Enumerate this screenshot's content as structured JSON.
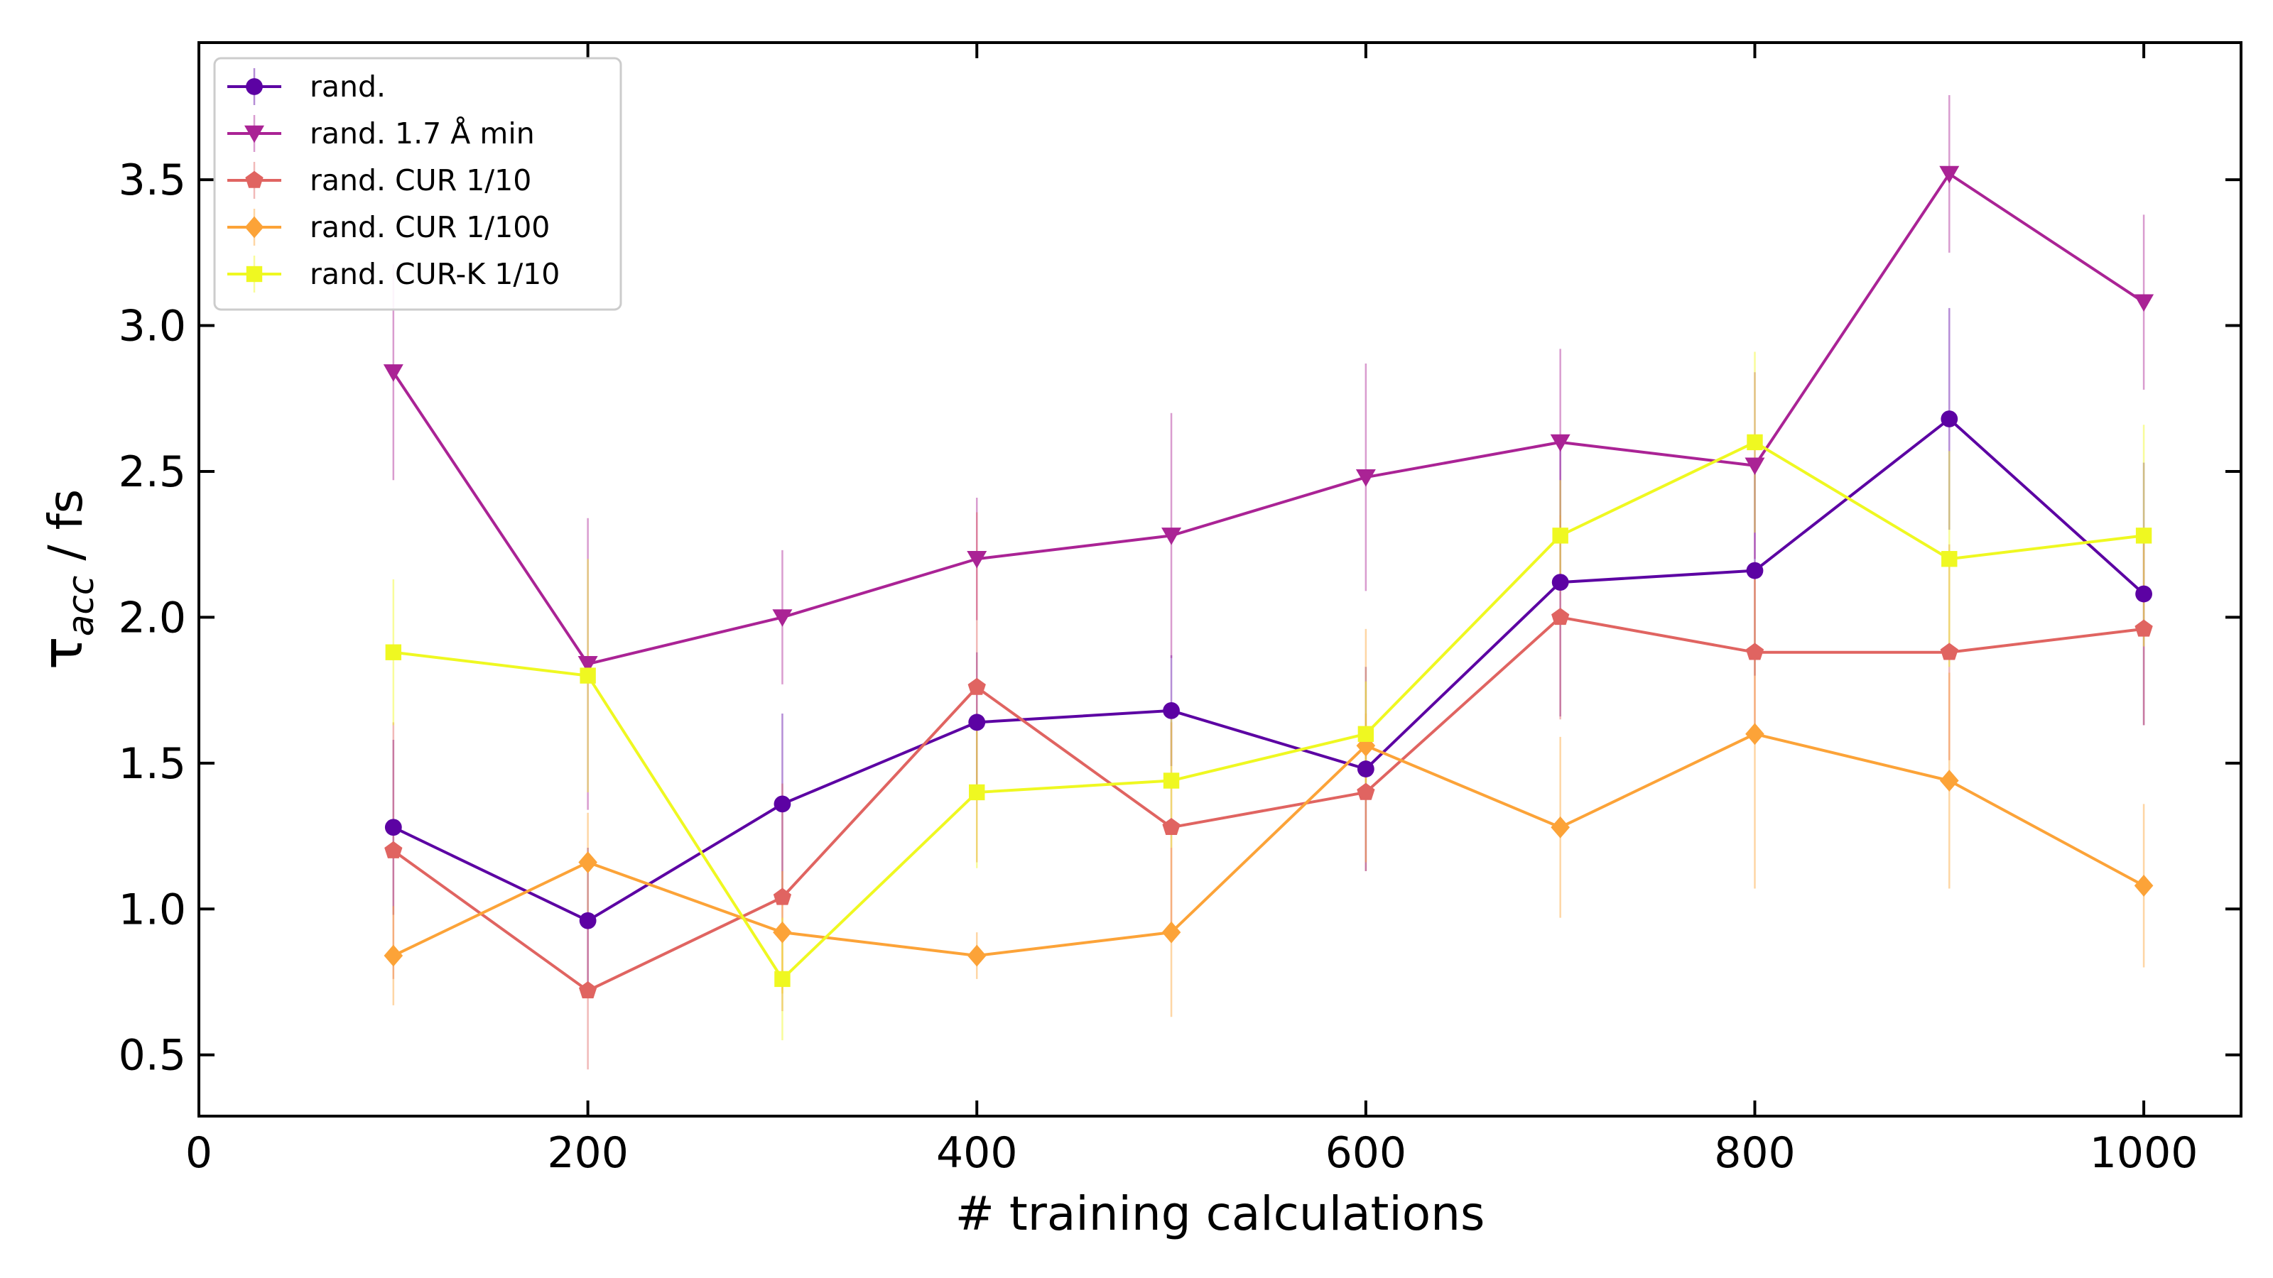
{
  "chart_data": {
    "type": "line",
    "title": "",
    "xlabel": "# training calculations",
    "ylabel": {
      "symbol": "τ",
      "subscript": "acc",
      "unit": " / fs"
    },
    "xlim": [
      0,
      1050
    ],
    "ylim": [
      0.29,
      3.97
    ],
    "xticks": [
      0,
      200,
      400,
      600,
      800,
      1000
    ],
    "yticks": [
      0.5,
      1.0,
      1.5,
      2.0,
      2.5,
      3.0,
      3.5
    ],
    "xtick_labels": [
      "0",
      "200",
      "400",
      "600",
      "800",
      "1000"
    ],
    "ytick_labels": [
      "0.5",
      "1.0",
      "1.5",
      "2.0",
      "2.5",
      "3.0",
      "3.5"
    ],
    "grid": false,
    "legend_position": "top-left",
    "x": [
      100,
      200,
      300,
      400,
      500,
      600,
      700,
      800,
      900,
      1000
    ],
    "series": [
      {
        "name": "rand.",
        "color": "#5c02a3",
        "marker": "circle",
        "values": [
          1.28,
          0.96,
          1.36,
          1.64,
          1.68,
          1.48,
          2.12,
          2.16,
          2.68,
          2.08
        ],
        "errors": [
          0.3,
          0.25,
          0.31,
          0.24,
          0.19,
          0.35,
          0.46,
          0.36,
          0.38,
          0.45
        ]
      },
      {
        "name": "rand. 1.7 Å min",
        "color": "#aa2395",
        "marker": "triangle-down",
        "values": [
          2.84,
          1.84,
          2.0,
          2.2,
          2.28,
          2.48,
          2.6,
          2.52,
          3.52,
          3.08
        ],
        "errors": [
          0.37,
          0.5,
          0.23,
          0.21,
          0.42,
          0.39,
          0.32,
          0.32,
          0.27,
          0.3
        ]
      },
      {
        "name": "rand. CUR 1/10",
        "color": "#e06461",
        "marker": "pentagon",
        "values": [
          1.2,
          0.72,
          1.04,
          1.76,
          1.28,
          1.4,
          2.0,
          1.88,
          1.88,
          1.96
        ],
        "errors": [
          0.44,
          0.27,
          0.39,
          0.6,
          0.36,
          0.27,
          0.35,
          0.31,
          0.37,
          0.33
        ]
      },
      {
        "name": "rand. CUR 1/100",
        "color": "#fca338",
        "marker": "diamond",
        "values": [
          0.84,
          1.16,
          0.92,
          0.84,
          0.92,
          1.56,
          1.28,
          1.6,
          1.44,
          1.08
        ],
        "errors": [
          0.17,
          0.17,
          0.21,
          0.08,
          0.29,
          0.4,
          0.31,
          0.53,
          0.37,
          0.28
        ]
      },
      {
        "name": "rand. CUR-K 1/10",
        "color": "#eff821",
        "marker": "square",
        "values": [
          1.88,
          1.8,
          0.76,
          1.4,
          1.44,
          1.6,
          2.28,
          2.6,
          2.2,
          2.28
        ],
        "errors": [
          0.25,
          0.4,
          0.21,
          0.26,
          0.23,
          0.18,
          0.19,
          0.31,
          0.37,
          0.38
        ]
      }
    ]
  }
}
